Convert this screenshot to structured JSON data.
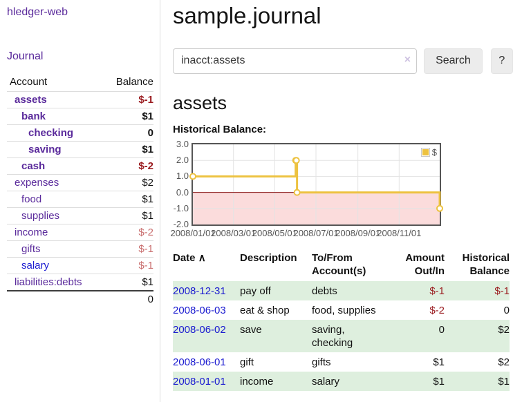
{
  "app": {
    "brand": "hledger-web"
  },
  "sidebar": {
    "journal_link": "Journal",
    "accounts": {
      "col_account": "Account",
      "col_balance": "Balance",
      "rows": [
        {
          "account": "assets",
          "balance": "$-1",
          "depth": 1,
          "bold": true,
          "balance_class": "neg-strong",
          "link": "purple"
        },
        {
          "account": "bank",
          "balance": "$1",
          "depth": 2,
          "bold": true,
          "balance_class": "",
          "link": "purple"
        },
        {
          "account": "checking",
          "balance": "0",
          "depth": 3,
          "bold": true,
          "balance_class": "",
          "link": "purple"
        },
        {
          "account": "saving",
          "balance": "$1",
          "depth": 3,
          "bold": true,
          "balance_class": "",
          "link": "purple"
        },
        {
          "account": "cash",
          "balance": "$-2",
          "depth": 2,
          "bold": true,
          "balance_class": "neg-strong",
          "link": "purple"
        },
        {
          "account": "expenses",
          "balance": "$2",
          "depth": 1,
          "bold": false,
          "balance_class": "",
          "link": "purple"
        },
        {
          "account": "food",
          "balance": "$1",
          "depth": 2,
          "bold": false,
          "balance_class": "",
          "link": "purple"
        },
        {
          "account": "supplies",
          "balance": "$1",
          "depth": 2,
          "bold": false,
          "balance_class": "",
          "link": "purple"
        },
        {
          "account": "income",
          "balance": "$-2",
          "depth": 1,
          "bold": false,
          "balance_class": "neg-faded",
          "link": "purple"
        },
        {
          "account": "gifts",
          "balance": "$-1",
          "depth": 2,
          "bold": false,
          "balance_class": "neg-faded",
          "link": "purple"
        },
        {
          "account": "salary",
          "balance": "$-1",
          "depth": 2,
          "bold": false,
          "balance_class": "neg-faded",
          "link": "blue"
        },
        {
          "account": "liabilities:debts",
          "balance": "$1",
          "depth": 1,
          "bold": false,
          "balance_class": "",
          "link": "purple"
        }
      ],
      "total": "0"
    }
  },
  "main": {
    "title": "sample.journal",
    "search": {
      "value": "inacct:assets",
      "clear_icon": "×",
      "search_button": "Search",
      "help_button": "?"
    },
    "account_title": "assets",
    "chart_label": "Historical Balance:"
  },
  "chart_data": {
    "type": "line",
    "step": true,
    "title": "Historical Balance",
    "legend": {
      "label": "$",
      "position": "top-right"
    },
    "series": [
      {
        "name": "$",
        "color": "#edc240",
        "x": [
          "2008-01-01",
          "2008-06-01",
          "2008-06-02",
          "2008-06-03",
          "2008-12-31"
        ],
        "values": [
          1,
          2,
          2,
          0,
          -1
        ]
      }
    ],
    "ylim": [
      -2.0,
      3.0
    ],
    "yticks": [
      "3.0",
      "2.0",
      "1.0",
      "0.0",
      "-1.0",
      "-2.0"
    ],
    "xticks": [
      {
        "date": "2008-01-01",
        "label": "2008/01/01"
      },
      {
        "date": "2008-03-01",
        "label": "2008/03/01"
      },
      {
        "date": "2008-05-01",
        "label": "2008/05/01"
      },
      {
        "date": "2008-07-01",
        "label": "2008/07/01"
      },
      {
        "date": "2008-09-01",
        "label": "2008/09/01"
      },
      {
        "date": "2008-11-01",
        "label": "2008/11/01"
      }
    ],
    "grid": true,
    "gridline_color": "#e3e3e3",
    "negative_fill": "#fbdcdc",
    "zero_line_color": "#8b1d1d",
    "border_color": "#555555",
    "marker": {
      "shape": "circle",
      "fill": "#ffffff",
      "stroke": "#edc240"
    }
  },
  "register": {
    "sort_icon": "∧",
    "headers": {
      "date": "Date",
      "description": "Description",
      "accounts": "To/From Account(s)",
      "amount": "Amount Out/In",
      "balance": "Historical Balance"
    },
    "rows": [
      {
        "date": "2008-12-31",
        "description": "pay off",
        "accounts": "debts",
        "amount": "$-1",
        "balance": "$-1",
        "amount_neg": true,
        "balance_neg": true
      },
      {
        "date": "2008-06-03",
        "description": "eat & shop",
        "accounts": "food, supplies",
        "amount": "$-2",
        "balance": "0",
        "amount_neg": true,
        "balance_neg": false
      },
      {
        "date": "2008-06-02",
        "description": "save",
        "accounts": "saving, checking",
        "amount": "0",
        "balance": "$2",
        "amount_neg": false,
        "balance_neg": false
      },
      {
        "date": "2008-06-01",
        "description": "gift",
        "accounts": "gifts",
        "amount": "$1",
        "balance": "$2",
        "amount_neg": false,
        "balance_neg": false
      },
      {
        "date": "2008-01-01",
        "description": "income",
        "accounts": "salary",
        "amount": "$1",
        "balance": "$1",
        "amount_neg": false,
        "balance_neg": false
      }
    ]
  },
  "colors": {
    "link_purple": "#5a2a9b",
    "link_blue": "#1a1ad0",
    "negative_strong": "#9a1b1f",
    "negative_faded": "#c96e6e",
    "row_green": "#deefde",
    "series_gold": "#edc240"
  }
}
